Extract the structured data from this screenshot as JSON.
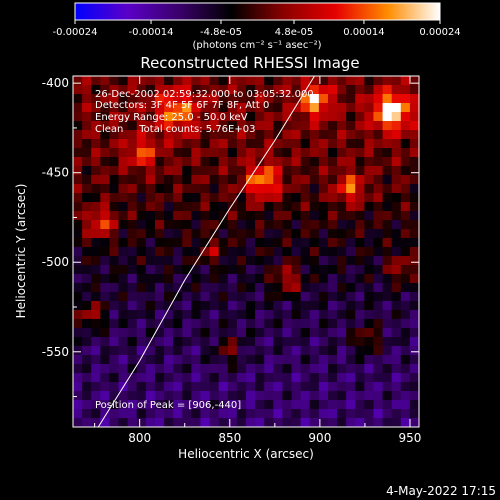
{
  "colorbar": {
    "ticks": [
      "-0.00024",
      "-0.00014",
      "-4.8e-05",
      "4.8e-05",
      "0.00014",
      "0.00024"
    ],
    "tick_values": [
      -0.00024,
      -0.00014,
      -4.8e-05,
      4.8e-05,
      0.00014,
      0.00024
    ],
    "range": [
      -0.00024,
      0.00024
    ],
    "units_label": "(photons cm⁻² s⁻¹ asec⁻²)",
    "stops": [
      "#0000ff",
      "#5a00c8",
      "#3a006a",
      "#000000",
      "#8a0000",
      "#e60000",
      "#ff8c00",
      "#ffffff"
    ]
  },
  "chart_data": {
    "type": "heatmap",
    "title": "Reconstructed RHESSI Image",
    "xlabel": "Heliocentric X (arcsec)",
    "ylabel": "Heliocentric Y (arcsec)",
    "xlim": [
      763,
      955
    ],
    "ylim": [
      -592,
      -396
    ],
    "xticks": [
      800,
      850,
      900,
      950
    ],
    "yticks": [
      -400,
      -450,
      -500,
      -550
    ],
    "annotations": [
      "26-Dec-2002 02:59:32.000 to 03:05:32.000",
      "Detectors: 3F 4F 5F 6F 7F 8F, Att 0",
      "Energy Range: 25.0 - 50.0 keV",
      "Clean     Total counts: 5.76E+03"
    ],
    "peak_label": "Position of Peak = [906,-440]",
    "peak": [
      906,
      -440
    ],
    "limb": [
      [
        777,
        -592
      ],
      [
        800,
        -555
      ],
      [
        825,
        -510
      ],
      [
        850,
        -470
      ],
      [
        875,
        -432
      ],
      [
        897,
        -396
      ]
    ],
    "grid_size": [
      38,
      39
    ]
  },
  "timestamp": "4-May-2022 17:15"
}
